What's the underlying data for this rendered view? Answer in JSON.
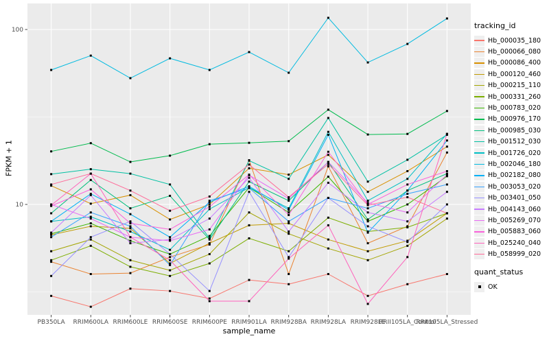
{
  "chart_data": {
    "type": "line",
    "title": "",
    "xlabel": "sample_name",
    "ylabel": "FPKM + 1",
    "y_scale": "log10",
    "y_major_ticks": [
      100,
      10
    ],
    "y_minor_gridlines": [
      31.623,
      3.162
    ],
    "grid": "major-and-minor, white on gray panel",
    "legend_position": "right",
    "marker": {
      "shape": "small-black-square",
      "color": "#000000"
    },
    "categories": [
      "PB350LA",
      "RRIM600LA",
      "RRIM600LE",
      "RRIM600SE",
      "RRIM600PE",
      "RRIM901LA",
      "RRIM928BA",
      "RRIM928LA",
      "RRIM928LE",
      "RRII105LA_Control",
      "RRII105LA_Stressed"
    ],
    "series": [
      {
        "name": "Hb_000035_180",
        "color": "#F8766D",
        "values": [
          3.0,
          2.6,
          3.3,
          3.2,
          2.9,
          3.7,
          3.5,
          4.0,
          3.0,
          3.5,
          4.0
        ]
      },
      {
        "name": "Hb_000066_080",
        "color": "#EA8331",
        "values": [
          4.7,
          4.0,
          4.05,
          5.0,
          5.9,
          17.9,
          4.0,
          16.5,
          6.0,
          7.5,
          19.8
        ]
      },
      {
        "name": "Hb_000086_400",
        "color": "#D89000",
        "values": [
          12.8,
          10.1,
          11.3,
          8.2,
          10.0,
          16.1,
          14.8,
          19.2,
          11.8,
          15.5,
          21.4
        ]
      },
      {
        "name": "Hb_000120_460",
        "color": "#C09B00",
        "values": [
          6.7,
          7.5,
          7.3,
          4.6,
          6.0,
          7.6,
          7.8,
          6.3,
          5.4,
          6.2,
          8.9
        ]
      },
      {
        "name": "Hb_000215_110",
        "color": "#A3A500",
        "values": [
          5.4,
          6.3,
          4.8,
          4.2,
          5.2,
          9.0,
          6.8,
          5.6,
          4.8,
          5.8,
          8.3
        ]
      },
      {
        "name": "Hb_000331_260",
        "color": "#7CAE00",
        "values": [
          4.8,
          5.8,
          4.4,
          3.9,
          4.6,
          6.4,
          5.4,
          8.4,
          7.0,
          7.4,
          8.9
        ]
      },
      {
        "name": "Hb_000783_020",
        "color": "#39B600",
        "values": [
          6.8,
          7.8,
          6.2,
          5.2,
          6.6,
          12.5,
          9.0,
          14.4,
          8.0,
          10.0,
          14.5
        ]
      },
      {
        "name": "Hb_000976_170",
        "color": "#00BB4E",
        "values": [
          20.1,
          22.4,
          17.5,
          19.0,
          22.1,
          22.5,
          23.0,
          34.8,
          25.1,
          25.3,
          34.2
        ]
      },
      {
        "name": "Hb_000985_030",
        "color": "#00BF7D",
        "values": [
          8.9,
          13.8,
          9.5,
          11.2,
          6.3,
          13.5,
          10.5,
          17.5,
          8.2,
          12.0,
          15.0
        ]
      },
      {
        "name": "Hb_001512_030",
        "color": "#00C1A3",
        "values": [
          14.9,
          15.9,
          15.0,
          13.0,
          6.4,
          17.8,
          14.0,
          31.2,
          13.5,
          18.0,
          25.0
        ]
      },
      {
        "name": "Hb_001726_020",
        "color": "#00BFC4",
        "values": [
          8.0,
          8.5,
          7.0,
          5.5,
          9.4,
          12.5,
          9.5,
          26.0,
          10.5,
          14.0,
          25.3
        ]
      },
      {
        "name": "Hb_002046_180",
        "color": "#00BAE0",
        "values": [
          58.7,
          70.9,
          52.7,
          68.4,
          58.7,
          74.3,
          56.6,
          116.6,
          64.8,
          82.7,
          115.6
        ]
      },
      {
        "name": "Hb_002182_080",
        "color": "#00B0F6",
        "values": [
          8.0,
          11.5,
          8.8,
          6.5,
          10.3,
          12.7,
          9.3,
          25.0,
          6.9,
          12.0,
          23.2
        ]
      },
      {
        "name": "Hb_003053_020",
        "color": "#35A2FF",
        "values": [
          6.5,
          9.0,
          7.5,
          4.5,
          10.5,
          12.4,
          8.0,
          10.9,
          9.5,
          11.5,
          13.0
        ]
      },
      {
        "name": "Hb_003401_050",
        "color": "#9590FF",
        "values": [
          3.9,
          6.5,
          8.0,
          5.2,
          3.2,
          11.8,
          5.0,
          10.9,
          7.5,
          6.1,
          10.0
        ]
      },
      {
        "name": "Hb_004143_060",
        "color": "#C77CFF",
        "values": [
          6.9,
          11.3,
          6.0,
          6.3,
          8.3,
          14.2,
          7.0,
          13.3,
          9.0,
          8.0,
          11.8
        ]
      },
      {
        "name": "Hb_005269_070",
        "color": "#E76BF3",
        "values": [
          10.0,
          8.3,
          6.5,
          6.2,
          7.2,
          14.7,
          10.8,
          17.5,
          10.2,
          9.0,
          14.8
        ]
      },
      {
        "name": "Hb_005883_060",
        "color": "#FA62DB",
        "values": [
          9.8,
          12.2,
          7.8,
          7.2,
          9.7,
          14.8,
          8.7,
          20.0,
          10.0,
          13.0,
          15.5
        ]
      },
      {
        "name": "Hb_025240_040",
        "color": "#FF62BC",
        "values": [
          9.9,
          15.0,
          6.5,
          4.8,
          2.8,
          2.8,
          4.9,
          7.6,
          2.7,
          5.0,
          25.3
        ]
      },
      {
        "name": "Hb_058999_020",
        "color": "#FF6A98",
        "values": [
          13.0,
          15.0,
          12.0,
          9.2,
          11.1,
          16.9,
          11.0,
          17.0,
          9.9,
          11.0,
          8.9
        ]
      }
    ]
  },
  "legend": {
    "tracking_title": "tracking_id",
    "quant_title": "quant_status",
    "quant_items": [
      "OK"
    ]
  },
  "style": {
    "panel_bg": "#ebebeb",
    "grid_color": "#ffffff",
    "axis_text_color": "#4d4d4d",
    "tick_color": "#333333",
    "marker_color": "#000000"
  }
}
